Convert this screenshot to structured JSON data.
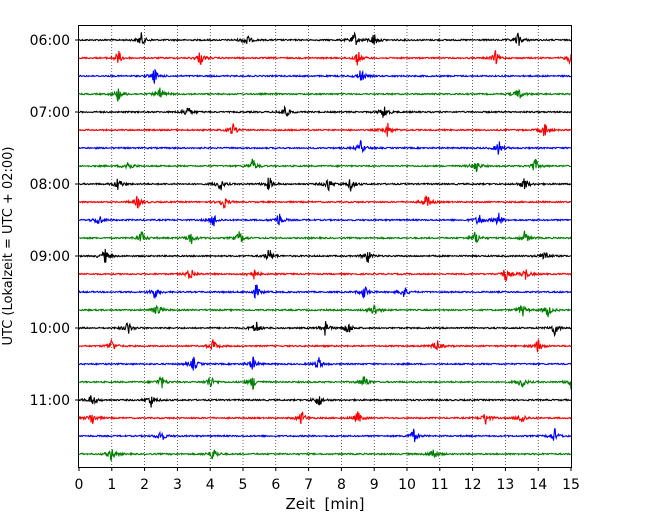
{
  "chart_data": {
    "type": "line",
    "title": "",
    "xlabel": "Zeit  [min]",
    "ylabel": "UTC (Lokalzeit = UTC + 02:00)",
    "xlim": [
      0,
      15
    ],
    "x_ticks": [
      "0",
      "1",
      "2",
      "3",
      "4",
      "5",
      "6",
      "7",
      "8",
      "9",
      "10",
      "11",
      "12",
      "13",
      "14",
      "15"
    ],
    "y_ticks": [
      "06:00",
      "07:00",
      "08:00",
      "09:00",
      "10:00",
      "11:00"
    ],
    "x_grid": true,
    "trace_colors": [
      "#000000",
      "#ff0000",
      "#0000ff",
      "#008000"
    ],
    "traces_per_hour": 4,
    "minutes_per_trace": 15,
    "start_time": "06:00",
    "series": [
      {
        "start": "06:00",
        "color": "#000000",
        "events": [
          1.9,
          5.1,
          8.4,
          9.0,
          13.4
        ]
      },
      {
        "start": "06:15",
        "color": "#ff0000",
        "events": [
          1.2,
          3.7,
          8.5,
          12.7,
          15.0
        ]
      },
      {
        "start": "06:30",
        "color": "#0000ff",
        "events": [
          2.3,
          8.6
        ]
      },
      {
        "start": "06:45",
        "color": "#008000",
        "events": [
          1.2,
          2.5,
          13.4
        ]
      },
      {
        "start": "07:00",
        "color": "#000000",
        "events": [
          3.3,
          6.3,
          9.3
        ]
      },
      {
        "start": "07:15",
        "color": "#ff0000",
        "events": [
          4.7,
          9.4,
          14.2
        ]
      },
      {
        "start": "07:30",
        "color": "#0000ff",
        "events": [
          8.6,
          12.8
        ]
      },
      {
        "start": "07:45",
        "color": "#008000",
        "events": [
          1.5,
          5.3,
          12.1,
          13.9
        ]
      },
      {
        "start": "08:00",
        "color": "#000000",
        "events": [
          1.2,
          4.3,
          5.8,
          7.6,
          8.3,
          13.6
        ]
      },
      {
        "start": "08:15",
        "color": "#ff0000",
        "events": [
          1.8,
          4.4,
          10.6
        ]
      },
      {
        "start": "08:30",
        "color": "#0000ff",
        "events": [
          0.6,
          4.1,
          6.1,
          12.2,
          12.8
        ]
      },
      {
        "start": "08:45",
        "color": "#008000",
        "events": [
          1.9,
          3.4,
          4.9,
          12.1,
          13.6
        ]
      },
      {
        "start": "09:00",
        "color": "#000000",
        "events": [
          0.8,
          5.8,
          8.8,
          14.2
        ]
      },
      {
        "start": "09:15",
        "color": "#ff0000",
        "events": [
          3.4,
          5.3,
          13.0,
          13.6
        ]
      },
      {
        "start": "09:30",
        "color": "#0000ff",
        "events": [
          2.3,
          5.4,
          8.7,
          9.9
        ]
      },
      {
        "start": "09:45",
        "color": "#008000",
        "events": [
          2.4,
          9.0,
          13.5,
          14.3
        ]
      },
      {
        "start": "10:00",
        "color": "#000000",
        "events": [
          1.5,
          5.4,
          7.5,
          8.2,
          14.5
        ]
      },
      {
        "start": "10:15",
        "color": "#ff0000",
        "events": [
          1.0,
          4.1,
          10.9,
          14.0
        ]
      },
      {
        "start": "10:30",
        "color": "#0000ff",
        "events": [
          3.5,
          5.3,
          7.3
        ]
      },
      {
        "start": "10:45",
        "color": "#008000",
        "events": [
          2.5,
          4.0,
          5.3,
          8.7,
          13.5,
          15.0
        ]
      },
      {
        "start": "11:00",
        "color": "#000000",
        "events": [
          0.4,
          2.2,
          7.3
        ]
      },
      {
        "start": "11:15",
        "color": "#ff0000",
        "events": [
          0.4,
          6.8,
          8.5,
          12.4,
          13.5
        ]
      },
      {
        "start": "11:30",
        "color": "#0000ff",
        "events": [
          2.5,
          10.2,
          14.5
        ]
      },
      {
        "start": "11:45",
        "color": "#008000",
        "events": [
          1.0,
          4.1,
          10.8
        ]
      }
    ]
  }
}
